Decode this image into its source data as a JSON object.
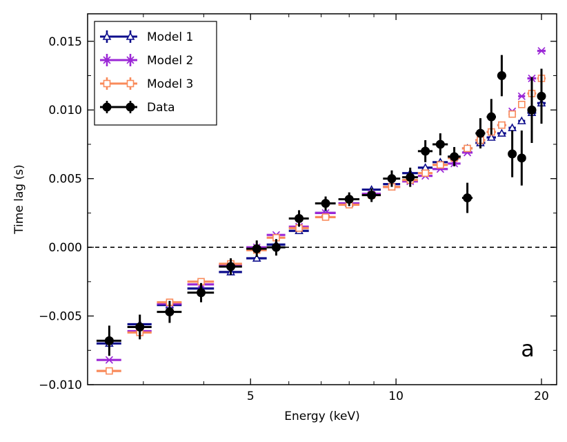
{
  "chart_data": {
    "type": "scatter",
    "title": "",
    "xlabel": "Energy (keV)",
    "ylabel": "Time lag (s)",
    "x_scale": "log",
    "xlim": [
      2.3,
      21.5
    ],
    "ylim": [
      -0.01,
      0.017
    ],
    "x_ticks": [
      5,
      10,
      20
    ],
    "x_tick_labels": [
      "5",
      "10",
      "20"
    ],
    "y_ticks": [
      -0.01,
      -0.005,
      0.0,
      0.005,
      0.01,
      0.015
    ],
    "y_tick_labels": [
      "−0.010",
      "−0.005",
      "0.000",
      "0.005",
      "0.010",
      "0.015"
    ],
    "reference_line": {
      "y": 0.0,
      "style": "dashed"
    },
    "panel_label": "a",
    "legend_position": "top-left",
    "grid": false,
    "series": [
      {
        "name": "Model 1",
        "color": "#0d0d8c",
        "marker": "triangle",
        "points": [
          {
            "x": 2.55,
            "xlo": 2.4,
            "xhi": 2.7,
            "y": -0.007
          },
          {
            "x": 2.95,
            "xlo": 2.78,
            "xhi": 3.12,
            "y": -0.0056
          },
          {
            "x": 3.4,
            "xlo": 3.2,
            "xhi": 3.6,
            "y": -0.0042
          },
          {
            "x": 3.95,
            "xlo": 3.7,
            "xhi": 4.2,
            "y": -0.003
          },
          {
            "x": 4.55,
            "xlo": 4.3,
            "xhi": 4.8,
            "y": -0.0018
          },
          {
            "x": 5.15,
            "xlo": 4.9,
            "xhi": 5.4,
            "y": -0.0008
          },
          {
            "x": 5.65,
            "xlo": 5.4,
            "xhi": 5.9,
            "y": 0.0002
          },
          {
            "x": 6.3,
            "xlo": 6.0,
            "xhi": 6.6,
            "y": 0.0012
          },
          {
            "x": 7.15,
            "xlo": 6.8,
            "xhi": 7.5,
            "y": 0.0025
          },
          {
            "x": 8.0,
            "xlo": 7.6,
            "xhi": 8.4,
            "y": 0.0032
          },
          {
            "x": 8.9,
            "xlo": 8.5,
            "xhi": 9.3,
            "y": 0.0042
          },
          {
            "x": 9.8,
            "xlo": 9.4,
            "xhi": 10.2,
            "y": 0.0046
          },
          {
            "x": 10.7,
            "xlo": 10.3,
            "xhi": 11.1,
            "y": 0.0054
          },
          {
            "x": 11.5,
            "xlo": 11.1,
            "xhi": 11.9,
            "y": 0.0058
          },
          {
            "x": 12.35,
            "xlo": 11.9,
            "xhi": 12.8,
            "y": 0.0062
          },
          {
            "x": 13.2,
            "xlo": 12.8,
            "xhi": 13.6,
            "y": 0.0066
          },
          {
            "x": 14.05,
            "xlo": 13.7,
            "xhi": 14.4,
            "y": 0.0072
          },
          {
            "x": 14.95,
            "xlo": 14.6,
            "xhi": 15.3,
            "y": 0.0076
          },
          {
            "x": 15.75,
            "xlo": 15.4,
            "xhi": 16.1,
            "y": 0.008
          },
          {
            "x": 16.55,
            "xlo": 16.2,
            "xhi": 16.9,
            "y": 0.0083
          },
          {
            "x": 17.4,
            "xlo": 17.1,
            "xhi": 17.7,
            "y": 0.0087
          },
          {
            "x": 18.2,
            "xlo": 17.9,
            "xhi": 18.5,
            "y": 0.0092
          },
          {
            "x": 19.1,
            "xlo": 18.7,
            "xhi": 19.5,
            "y": 0.0098
          },
          {
            "x": 20.0,
            "xlo": 19.6,
            "xhi": 20.4,
            "y": 0.0105
          }
        ]
      },
      {
        "name": "Model 2",
        "color": "#9b27d6",
        "marker": "x",
        "points": [
          {
            "x": 2.55,
            "xlo": 2.4,
            "xhi": 2.7,
            "y": -0.0082
          },
          {
            "x": 2.95,
            "xlo": 2.78,
            "xhi": 3.12,
            "y": -0.0061
          },
          {
            "x": 3.4,
            "xlo": 3.2,
            "xhi": 3.6,
            "y": -0.0041
          },
          {
            "x": 3.95,
            "xlo": 3.7,
            "xhi": 4.2,
            "y": -0.0027
          },
          {
            "x": 4.55,
            "xlo": 4.3,
            "xhi": 4.8,
            "y": -0.0013
          },
          {
            "x": 5.15,
            "xlo": 4.9,
            "xhi": 5.4,
            "y": 0.0
          },
          {
            "x": 5.65,
            "xlo": 5.4,
            "xhi": 5.9,
            "y": 0.0009
          },
          {
            "x": 6.3,
            "xlo": 6.0,
            "xhi": 6.6,
            "y": 0.0015
          },
          {
            "x": 7.15,
            "xlo": 6.8,
            "xhi": 7.5,
            "y": 0.0025
          },
          {
            "x": 8.0,
            "xlo": 7.6,
            "xhi": 8.4,
            "y": 0.0032
          },
          {
            "x": 8.9,
            "xlo": 8.5,
            "xhi": 9.3,
            "y": 0.0039
          },
          {
            "x": 9.8,
            "xlo": 9.4,
            "xhi": 10.2,
            "y": 0.0044
          },
          {
            "x": 10.7,
            "xlo": 10.3,
            "xhi": 11.1,
            "y": 0.0048
          },
          {
            "x": 11.5,
            "xlo": 11.1,
            "xhi": 11.9,
            "y": 0.0052
          },
          {
            "x": 12.35,
            "xlo": 11.9,
            "xhi": 12.8,
            "y": 0.0057
          },
          {
            "x": 13.2,
            "xlo": 12.8,
            "xhi": 13.6,
            "y": 0.0061
          },
          {
            "x": 14.05,
            "xlo": 13.7,
            "xhi": 14.4,
            "y": 0.0069
          },
          {
            "x": 14.95,
            "xlo": 14.6,
            "xhi": 15.3,
            "y": 0.0078
          },
          {
            "x": 15.75,
            "xlo": 15.4,
            "xhi": 16.1,
            "y": 0.0084
          },
          {
            "x": 16.55,
            "xlo": 16.2,
            "xhi": 16.9,
            "y": 0.0089
          },
          {
            "x": 17.4,
            "xlo": 17.1,
            "xhi": 17.7,
            "y": 0.0099
          },
          {
            "x": 18.2,
            "xlo": 17.9,
            "xhi": 18.5,
            "y": 0.011
          },
          {
            "x": 19.1,
            "xlo": 18.7,
            "xhi": 19.5,
            "y": 0.0123
          },
          {
            "x": 20.0,
            "xlo": 19.6,
            "xhi": 20.4,
            "y": 0.0143
          }
        ]
      },
      {
        "name": "Model 3",
        "color": "#f98a5a",
        "marker": "square",
        "points": [
          {
            "x": 2.55,
            "xlo": 2.4,
            "xhi": 2.7,
            "y": -0.009
          },
          {
            "x": 2.95,
            "xlo": 2.78,
            "xhi": 3.12,
            "y": -0.0062
          },
          {
            "x": 3.4,
            "xlo": 3.2,
            "xhi": 3.6,
            "y": -0.004
          },
          {
            "x": 3.95,
            "xlo": 3.7,
            "xhi": 4.2,
            "y": -0.0025
          },
          {
            "x": 4.55,
            "xlo": 4.3,
            "xhi": 4.8,
            "y": -0.0012
          },
          {
            "x": 5.15,
            "xlo": 4.9,
            "xhi": 5.4,
            "y": -0.0002
          },
          {
            "x": 5.65,
            "xlo": 5.4,
            "xhi": 5.9,
            "y": 0.0007
          },
          {
            "x": 6.3,
            "xlo": 6.0,
            "xhi": 6.6,
            "y": 0.0014
          },
          {
            "x": 7.15,
            "xlo": 6.8,
            "xhi": 7.5,
            "y": 0.0022
          },
          {
            "x": 8.0,
            "xlo": 7.6,
            "xhi": 8.4,
            "y": 0.0031
          },
          {
            "x": 8.9,
            "xlo": 8.5,
            "xhi": 9.3,
            "y": 0.0038
          },
          {
            "x": 9.8,
            "xlo": 9.4,
            "xhi": 10.2,
            "y": 0.0044
          },
          {
            "x": 10.7,
            "xlo": 10.3,
            "xhi": 11.1,
            "y": 0.0049
          },
          {
            "x": 11.5,
            "xlo": 11.1,
            "xhi": 11.9,
            "y": 0.0054
          },
          {
            "x": 12.35,
            "xlo": 11.9,
            "xhi": 12.8,
            "y": 0.006
          },
          {
            "x": 13.2,
            "xlo": 12.8,
            "xhi": 13.6,
            "y": 0.0065
          },
          {
            "x": 14.05,
            "xlo": 13.7,
            "xhi": 14.4,
            "y": 0.0072
          },
          {
            "x": 14.95,
            "xlo": 14.6,
            "xhi": 15.3,
            "y": 0.0078
          },
          {
            "x": 15.75,
            "xlo": 15.4,
            "xhi": 16.1,
            "y": 0.0084
          },
          {
            "x": 16.55,
            "xlo": 16.2,
            "xhi": 16.9,
            "y": 0.0089
          },
          {
            "x": 17.4,
            "xlo": 17.1,
            "xhi": 17.7,
            "y": 0.0097
          },
          {
            "x": 18.2,
            "xlo": 17.9,
            "xhi": 18.5,
            "y": 0.0104
          },
          {
            "x": 19.1,
            "xlo": 18.7,
            "xhi": 19.5,
            "y": 0.0112
          },
          {
            "x": 20.0,
            "xlo": 19.6,
            "xhi": 20.4,
            "y": 0.0123
          }
        ]
      },
      {
        "name": "Data",
        "color": "#000000",
        "marker": "circle",
        "points": [
          {
            "x": 2.55,
            "xlo": 2.4,
            "xhi": 2.7,
            "y": -0.0068,
            "yerr": 0.0011
          },
          {
            "x": 2.95,
            "xlo": 2.78,
            "xhi": 3.12,
            "y": -0.0058,
            "yerr": 0.0009
          },
          {
            "x": 3.4,
            "xlo": 3.2,
            "xhi": 3.6,
            "y": -0.0047,
            "yerr": 0.0008
          },
          {
            "x": 3.95,
            "xlo": 3.7,
            "xhi": 4.2,
            "y": -0.0033,
            "yerr": 0.0007
          },
          {
            "x": 4.55,
            "xlo": 4.3,
            "xhi": 4.8,
            "y": -0.0014,
            "yerr": 0.0006
          },
          {
            "x": 5.15,
            "xlo": 4.9,
            "xhi": 5.4,
            "y": -0.0001,
            "yerr": 0.0006
          },
          {
            "x": 5.65,
            "xlo": 5.4,
            "xhi": 5.9,
            "y": 0.0,
            "yerr": 0.0006
          },
          {
            "x": 6.3,
            "xlo": 6.0,
            "xhi": 6.6,
            "y": 0.0021,
            "yerr": 0.0006
          },
          {
            "x": 7.15,
            "xlo": 6.8,
            "xhi": 7.5,
            "y": 0.0032,
            "yerr": 0.0005
          },
          {
            "x": 8.0,
            "xlo": 7.6,
            "xhi": 8.4,
            "y": 0.0035,
            "yerr": 0.0005
          },
          {
            "x": 8.9,
            "xlo": 8.5,
            "xhi": 9.3,
            "y": 0.0038,
            "yerr": 0.0005
          },
          {
            "x": 9.8,
            "xlo": 9.4,
            "xhi": 10.2,
            "y": 0.005,
            "yerr": 0.0006
          },
          {
            "x": 10.7,
            "xlo": 10.3,
            "xhi": 11.1,
            "y": 0.0051,
            "yerr": 0.0007
          },
          {
            "x": 11.5,
            "xlo": 11.1,
            "xhi": 11.9,
            "y": 0.007,
            "yerr": 0.0008
          },
          {
            "x": 12.35,
            "xlo": 11.9,
            "xhi": 12.8,
            "y": 0.0075,
            "yerr": 0.0008
          },
          {
            "x": 13.2,
            "xlo": 12.8,
            "xhi": 13.6,
            "y": 0.0066,
            "yerr": 0.0007
          },
          {
            "x": 14.05,
            "xlo": 13.7,
            "xhi": 14.4,
            "y": 0.0036,
            "yerr": 0.0011
          },
          {
            "x": 14.95,
            "xlo": 14.6,
            "xhi": 15.3,
            "y": 0.0083,
            "yerr": 0.0011
          },
          {
            "x": 15.75,
            "xlo": 15.4,
            "xhi": 16.1,
            "y": 0.0095,
            "yerr": 0.0013
          },
          {
            "x": 16.55,
            "xlo": 16.2,
            "xhi": 16.9,
            "y": 0.0125,
            "yerr": 0.0015
          },
          {
            "x": 17.4,
            "xlo": 17.1,
            "xhi": 17.7,
            "y": 0.0068,
            "yerr": 0.0017
          },
          {
            "x": 18.2,
            "xlo": 17.9,
            "xhi": 18.5,
            "y": 0.0065,
            "yerr": 0.002
          },
          {
            "x": 19.1,
            "xlo": 18.7,
            "xhi": 19.5,
            "y": 0.01,
            "yerr": 0.0024
          },
          {
            "x": 20.0,
            "xlo": 19.6,
            "xhi": 20.4,
            "y": 0.011,
            "yerr": 0.002
          }
        ]
      }
    ]
  }
}
